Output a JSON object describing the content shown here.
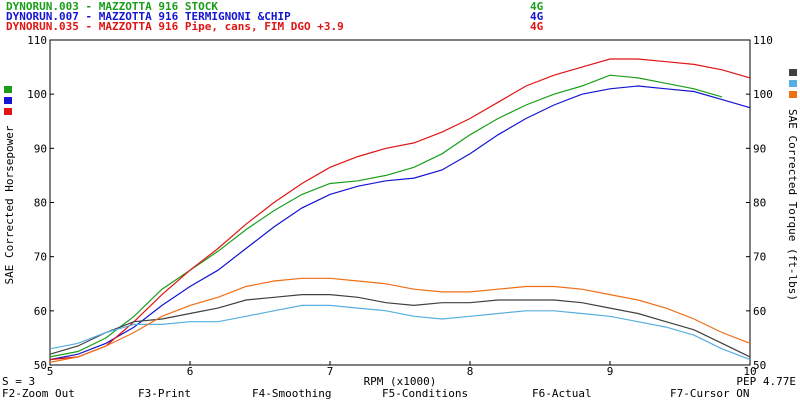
{
  "header_runs": [
    {
      "id": "DYNORUN.003",
      "desc": "MAZZOTTA 916 STOCK",
      "gear": "4G",
      "color": "#1a9e1a"
    },
    {
      "id": "DYNORUN.007",
      "desc": "MAZZOTTA 916 TERMIGNONI &CHIP",
      "gear": "4G",
      "color": "#1414d2"
    },
    {
      "id": "DYNORUN.035",
      "desc": "MAZZOTTA 916 Pipe, cans, FIM DGO +3.9",
      "gear": "4G",
      "color": "#e01414"
    }
  ],
  "left_swatches": [
    "#1a9e1a",
    "#1414d2",
    "#e01414"
  ],
  "right_swatches": [
    "#404040",
    "#58aee0",
    "#f06e14"
  ],
  "footer": {
    "smoothing": "S = 3",
    "x_title": "RPM (x1000)",
    "pep": "PEP 4.77E",
    "function_keys": [
      "F2-Zoom Out",
      "F3-Print",
      "F4-Smoothing",
      "F5-Conditions",
      "F6-Actual",
      "F7-Cursor ON"
    ]
  },
  "chart_data": {
    "type": "line",
    "xlabel": "RPM (x1000)",
    "ylabel": "SAE Corrected Horsepower",
    "y2label": "SAE Corrected Torque (ft-lbs)",
    "xlim": [
      5,
      10
    ],
    "ylim": [
      50,
      110
    ],
    "y2lim": [
      50,
      110
    ],
    "x_ticks": [
      5,
      6,
      7,
      8,
      9,
      10
    ],
    "y_ticks": [
      50,
      60,
      70,
      80,
      90,
      100,
      110
    ],
    "y2_ticks": [
      50,
      60,
      70,
      80,
      90,
      100,
      110
    ],
    "grid": false,
    "series": [
      {
        "name": "DYNORUN.003",
        "axis": "y",
        "color": "#1a9e1a",
        "x": [
          5.0,
          5.2,
          5.4,
          5.6,
          5.8,
          6.0,
          6.2,
          6.4,
          6.6,
          6.8,
          7.0,
          7.2,
          7.4,
          7.6,
          7.8,
          8.0,
          8.2,
          8.4,
          8.6,
          8.8,
          9.0,
          9.2,
          9.4,
          9.6,
          9.8
        ],
        "y": [
          51.5,
          52.5,
          55,
          59,
          64,
          67.5,
          71,
          75,
          78.5,
          81.5,
          83.5,
          84,
          85,
          86.5,
          89,
          92.5,
          95.5,
          98,
          100,
          101.5,
          103.5,
          103,
          102,
          101,
          99.5
        ]
      },
      {
        "name": "DYNORUN.007",
        "axis": "y",
        "color": "#1414d2",
        "x": [
          5.0,
          5.2,
          5.4,
          5.6,
          5.8,
          6.0,
          6.2,
          6.4,
          6.6,
          6.8,
          7.0,
          7.2,
          7.4,
          7.6,
          7.8,
          8.0,
          8.2,
          8.4,
          8.6,
          8.8,
          9.0,
          9.2,
          9.4,
          9.6,
          9.8,
          10.0
        ],
        "y": [
          51,
          52,
          54,
          57,
          61,
          64.5,
          67.5,
          71.5,
          75.5,
          79,
          81.5,
          83,
          84,
          84.5,
          86,
          89,
          92.5,
          95.5,
          98,
          100,
          101,
          101.5,
          101,
          100.5,
          99,
          97.5
        ]
      },
      {
        "name": "DYNORUN.035",
        "axis": "y",
        "color": "#e01414",
        "x": [
          5.0,
          5.2,
          5.4,
          5.6,
          5.8,
          6.0,
          6.2,
          6.4,
          6.6,
          6.8,
          7.0,
          7.2,
          7.4,
          7.6,
          7.8,
          8.0,
          8.2,
          8.4,
          8.6,
          8.8,
          9.0,
          9.2,
          9.4,
          9.6,
          9.8,
          10.0
        ],
        "y": [
          51,
          51.5,
          53.5,
          58,
          63,
          67.5,
          71.5,
          76,
          80,
          83.5,
          86.5,
          88.5,
          90,
          91,
          93,
          95.5,
          98.5,
          101.5,
          103.5,
          105,
          106.5,
          106.5,
          106,
          105.5,
          104.5,
          103
        ]
      },
      {
        "name": "DYNORUN.003 torque",
        "axis": "y2",
        "color": "#404040",
        "x": [
          5.0,
          5.2,
          5.4,
          5.6,
          5.8,
          6.0,
          6.2,
          6.4,
          6.6,
          6.8,
          7.0,
          7.2,
          7.4,
          7.6,
          7.8,
          8.0,
          8.2,
          8.4,
          8.6,
          8.8,
          9.0,
          9.2,
          9.4,
          9.6,
          9.8,
          10.0
        ],
        "y": [
          52,
          53.5,
          56,
          58,
          58.5,
          59.5,
          60.5,
          62,
          62.5,
          63,
          63,
          62.5,
          61.5,
          61,
          61.5,
          61.5,
          62,
          62,
          62,
          61.5,
          60.5,
          59.5,
          58,
          56.5,
          54,
          51.5
        ]
      },
      {
        "name": "DYNORUN.007 torque",
        "axis": "y2",
        "color": "#58aee0",
        "x": [
          5.0,
          5.2,
          5.4,
          5.6,
          5.8,
          6.0,
          6.2,
          6.4,
          6.6,
          6.8,
          7.0,
          7.2,
          7.4,
          7.6,
          7.8,
          8.0,
          8.2,
          8.4,
          8.6,
          8.8,
          9.0,
          9.2,
          9.4,
          9.6,
          9.8,
          10.0
        ],
        "y": [
          53,
          54,
          56,
          57.5,
          57.5,
          58,
          58,
          59,
          60,
          61,
          61,
          60.5,
          60,
          59,
          58.5,
          59,
          59.5,
          60,
          60,
          59.5,
          59,
          58,
          57,
          55.5,
          53,
          51
        ]
      },
      {
        "name": "DYNORUN.035 torque",
        "axis": "y2",
        "color": "#f06e14",
        "x": [
          5.0,
          5.2,
          5.4,
          5.6,
          5.8,
          6.0,
          6.2,
          6.4,
          6.6,
          6.8,
          7.0,
          7.2,
          7.4,
          7.6,
          7.8,
          8.0,
          8.2,
          8.4,
          8.6,
          8.8,
          9.0,
          9.2,
          9.4,
          9.6,
          9.8,
          10.0
        ],
        "y": [
          50.5,
          51.5,
          53.5,
          56,
          59,
          61,
          62.5,
          64.5,
          65.5,
          66,
          66,
          65.5,
          65,
          64,
          63.5,
          63.5,
          64,
          64.5,
          64.5,
          64,
          63,
          62,
          60.5,
          58.5,
          56,
          54
        ]
      }
    ]
  }
}
